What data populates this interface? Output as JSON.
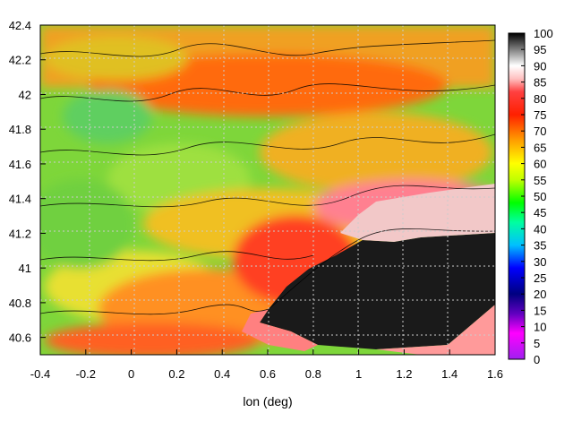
{
  "chart_data": {
    "type": "heatmap",
    "title": "",
    "xlabel": "lon (deg)",
    "ylabel": "",
    "xlim": [
      -0.4,
      1.6
    ],
    "ylim": [
      40.5,
      42.4
    ],
    "xticks": [
      "-0.4",
      "-0.2",
      "0",
      "0.2",
      "0.4",
      "0.6",
      "0.8",
      "1",
      "1.2",
      "1.4",
      "1.6"
    ],
    "yticks": [
      "40.6",
      "40.8",
      "41",
      "41.2",
      "41.4",
      "41.6",
      "41.8",
      "42",
      "42.2",
      "42.4"
    ],
    "grid": true,
    "colorbar": {
      "range": [
        0,
        100
      ],
      "ticks": [
        "0",
        "5",
        "10",
        "15",
        "20",
        "25",
        "30",
        "35",
        "40",
        "45",
        "50",
        "55",
        "60",
        "65",
        "70",
        "75",
        "80",
        "85",
        "90",
        "95",
        "100"
      ],
      "colors": [
        "#a020f0",
        "#ff00ff",
        "#8000c0",
        "#000080",
        "#0000ff",
        "#00a0ff",
        "#00ffff",
        "#00ff80",
        "#00ff00",
        "#80ff00",
        "#c0ff00",
        "#ffff00",
        "#ffc000",
        "#ff8000",
        "#ff0000",
        "#ff6060",
        "#ffffff",
        "#a0a0a0",
        "#000000"
      ]
    },
    "regions": [
      {
        "name": "",
        "description": "dark sea region high values",
        "value_range": [
          90,
          100
        ]
      }
    ]
  }
}
